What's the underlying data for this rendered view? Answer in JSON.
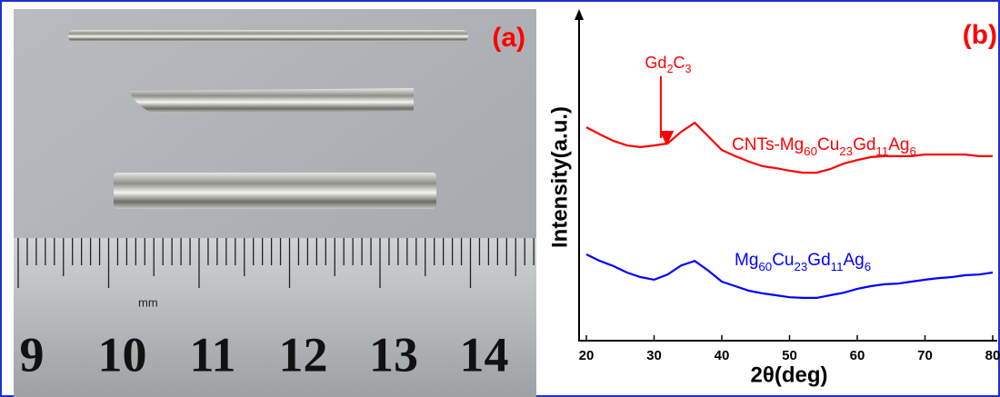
{
  "photo": {
    "panel_label": "(a)",
    "ruler_unit": "mm",
    "ruler_labels": [
      "9",
      "10",
      "11",
      "12",
      "13",
      "14"
    ]
  },
  "chart_data": {
    "type": "line",
    "panel_label": "(b)",
    "xlabel": "2θ(deg)",
    "ylabel": "Intensity(a.u.)",
    "x": [
      20,
      22,
      24,
      26,
      28,
      30,
      32,
      34,
      36,
      38,
      40,
      42,
      44,
      46,
      48,
      50,
      52,
      54,
      56,
      58,
      60,
      62,
      64,
      66,
      68,
      70,
      72,
      74,
      76,
      78,
      80
    ],
    "series": [
      {
        "name": "CNTs-Mg60Cu23Gd11Ag6",
        "color": "#ff0000",
        "values": [
          65.8,
          63.6,
          61.6,
          60.2,
          59.7,
          60.2,
          60.8,
          64.4,
          67.2,
          63.0,
          58.8,
          56.9,
          55.2,
          53.8,
          53.2,
          52.4,
          51.8,
          51.8,
          52.9,
          54.6,
          55.7,
          56.6,
          56.9,
          56.9,
          56.9,
          57.4,
          57.4,
          57.4,
          57.4,
          56.9,
          56.9
        ]
      },
      {
        "name": "Mg60Cu23Gd11Ag6",
        "color": "#0000ff",
        "values": [
          26.6,
          24.6,
          23.0,
          21.0,
          19.6,
          18.8,
          20.4,
          23.2,
          24.6,
          21.6,
          18.2,
          16.8,
          15.4,
          14.6,
          14.0,
          13.4,
          13.2,
          13.2,
          14.0,
          14.8,
          16.0,
          16.8,
          17.4,
          17.6,
          18.2,
          18.8,
          19.3,
          19.6,
          20.2,
          20.4,
          21.0
        ]
      }
    ],
    "annotations": [
      {
        "text": "Gd2C3",
        "x": 31
      }
    ],
    "xlim": [
      20,
      80
    ],
    "xticks": [
      20,
      30,
      40,
      50,
      60,
      70,
      80
    ],
    "ylim": [
      0,
      100
    ]
  }
}
